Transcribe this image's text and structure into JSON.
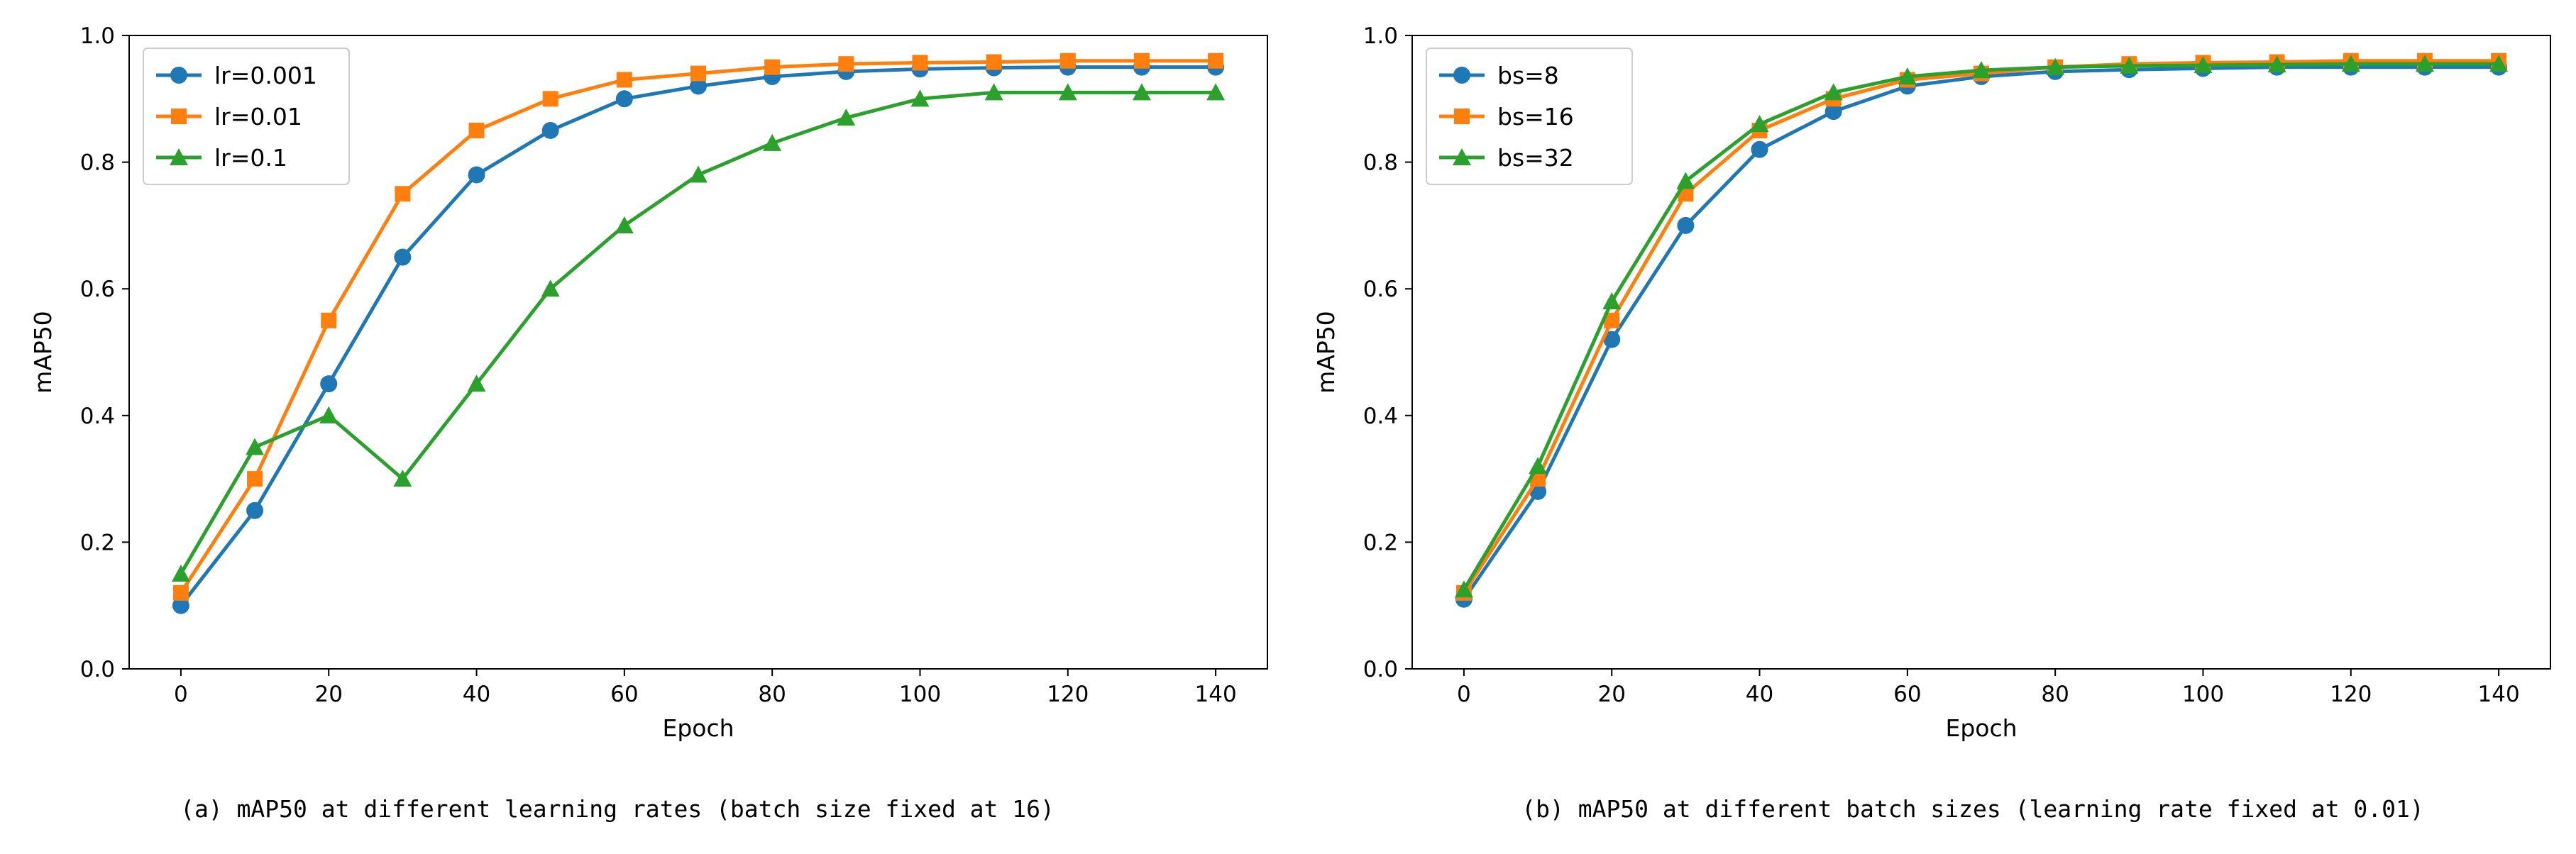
{
  "chart_data": [
    {
      "type": "line",
      "xlabel": "Epoch",
      "ylabel": "mAP50",
      "xlim": [
        -7,
        147
      ],
      "ylim": [
        0.0,
        1.0
      ],
      "xticks": [
        "0",
        "20",
        "40",
        "60",
        "80",
        "100",
        "120",
        "140"
      ],
      "yticks": [
        "0.0",
        "0.2",
        "0.4",
        "0.6",
        "0.8",
        "1.0"
      ],
      "legend_position": "top-left",
      "caption": "(a) mAP50 at different learning rates (batch size fixed at 16)",
      "x": [
        0,
        10,
        20,
        30,
        40,
        50,
        60,
        70,
        80,
        90,
        100,
        110,
        120,
        130,
        140
      ],
      "series": [
        {
          "name": "lr=0.001",
          "color": "#1f77b4",
          "marker": "circle",
          "values": [
            0.1,
            0.25,
            0.45,
            0.65,
            0.78,
            0.85,
            0.9,
            0.92,
            0.935,
            0.943,
            0.947,
            0.949,
            0.95,
            0.95,
            0.95
          ]
        },
        {
          "name": "lr=0.01",
          "color": "#ff7f0e",
          "marker": "square",
          "values": [
            0.12,
            0.3,
            0.55,
            0.75,
            0.85,
            0.9,
            0.93,
            0.94,
            0.95,
            0.955,
            0.957,
            0.958,
            0.96,
            0.96,
            0.96
          ]
        },
        {
          "name": "lr=0.1",
          "color": "#2ca02c",
          "marker": "triangle",
          "values": [
            0.15,
            0.35,
            0.4,
            0.3,
            0.45,
            0.6,
            0.7,
            0.78,
            0.83,
            0.87,
            0.9,
            0.91,
            0.91,
            0.91,
            0.91
          ]
        }
      ]
    },
    {
      "type": "line",
      "xlabel": "Epoch",
      "ylabel": "mAP50",
      "xlim": [
        -7,
        147
      ],
      "ylim": [
        0.0,
        1.0
      ],
      "xticks": [
        "0",
        "20",
        "40",
        "60",
        "80",
        "100",
        "120",
        "140"
      ],
      "yticks": [
        "0.0",
        "0.2",
        "0.4",
        "0.6",
        "0.8",
        "1.0"
      ],
      "legend_position": "top-left",
      "caption": "(b) mAP50 at different batch sizes (learning rate fixed at 0.01)",
      "x": [
        0,
        10,
        20,
        30,
        40,
        50,
        60,
        70,
        80,
        90,
        100,
        110,
        120,
        130,
        140
      ],
      "series": [
        {
          "name": "bs=8",
          "color": "#1f77b4",
          "marker": "circle",
          "values": [
            0.11,
            0.28,
            0.52,
            0.7,
            0.82,
            0.88,
            0.92,
            0.935,
            0.943,
            0.946,
            0.948,
            0.95,
            0.95,
            0.95,
            0.95
          ]
        },
        {
          "name": "bs=16",
          "color": "#ff7f0e",
          "marker": "square",
          "values": [
            0.12,
            0.3,
            0.55,
            0.75,
            0.85,
            0.9,
            0.93,
            0.94,
            0.95,
            0.955,
            0.957,
            0.958,
            0.96,
            0.96,
            0.96
          ]
        },
        {
          "name": "bs=32",
          "color": "#2ca02c",
          "marker": "triangle",
          "values": [
            0.125,
            0.32,
            0.58,
            0.77,
            0.86,
            0.91,
            0.935,
            0.945,
            0.95,
            0.952,
            0.953,
            0.954,
            0.955,
            0.955,
            0.955
          ]
        }
      ]
    }
  ]
}
